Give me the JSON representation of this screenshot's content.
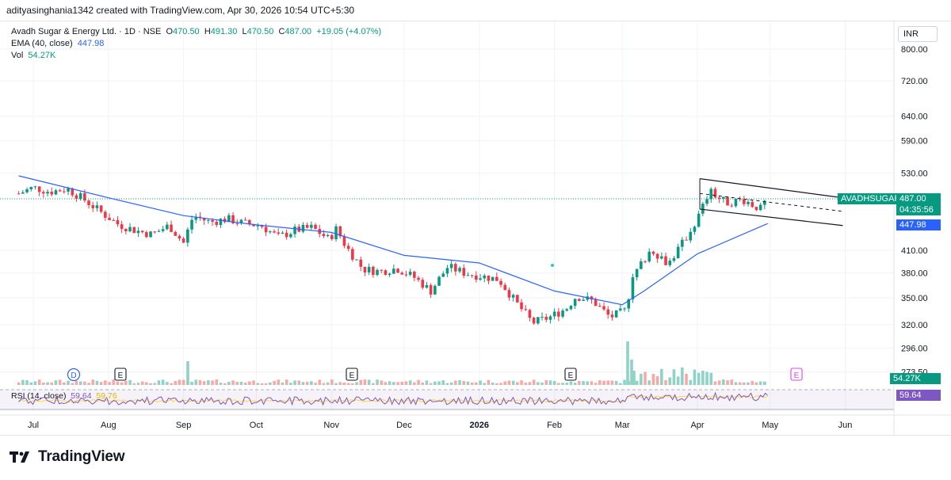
{
  "header": {
    "attribution": "adityasinghania1342 created with TradingView.com, Apr 30, 2026 10:54 UTC+5:30"
  },
  "legend": {
    "symbol_line": "Avadh Sugar & Energy Ltd. · 1D · NSE",
    "open_label": "O",
    "open": "470.50",
    "high_label": "H",
    "high": "491.30",
    "low_label": "L",
    "low": "470.50",
    "close_label": "C",
    "close": "487.00",
    "change": "+19.05 (+4.07%)",
    "ema_label": "EMA (40, close)",
    "ema_value": "447.98",
    "vol_label": "Vol",
    "vol_value": "54.27K",
    "rsi_label": "RSI (14, close)",
    "rsi_value": "59.64",
    "rsi_ma_value": "59.76"
  },
  "price_axis": {
    "currency": "INR",
    "ticks": [
      "800.00",
      "720.00",
      "640.00",
      "590.00",
      "530.00",
      "410.00",
      "380.00",
      "350.00",
      "320.00",
      "296.00",
      "273.50"
    ]
  },
  "time_axis": {
    "ticks": [
      "Jul",
      "Aug",
      "Sep",
      "Oct",
      "Nov",
      "Dec",
      "2026",
      "Feb",
      "Mar",
      "Apr",
      "May",
      "Jun"
    ]
  },
  "tags": {
    "symbol_tag": "AVADHSUGAR",
    "last_price": "487.00",
    "countdown": "04:35:56",
    "ema_tag": "447.98",
    "vol_tag": "54.27K",
    "rsi_tag": "59.64"
  },
  "event_markers": [
    "D",
    "E",
    "E",
    "E",
    "E"
  ],
  "brand": {
    "name": "TradingView"
  },
  "colors": {
    "up": "#089981",
    "down": "#f23645",
    "ema": "#2962ff",
    "rsi": "#7e57c2",
    "rsi_ma": "#fdd835",
    "tag_green": "#089981",
    "tag_blue": "#2962ff",
    "rsi_tag": "#7e57c2"
  },
  "chart_data": {
    "type": "candlestick",
    "title": "Avadh Sugar & Energy Ltd. · 1D · NSE",
    "y_scale": "log",
    "ylim": [
      265,
      830
    ],
    "x": [
      "Jul",
      "Aug",
      "Sep",
      "Oct",
      "Nov",
      "Dec",
      "2026",
      "Feb",
      "Mar",
      "Apr",
      "May",
      "Jun"
    ],
    "close_series": [
      {
        "date": "2025-06-25",
        "close": 495
      },
      {
        "date": "2025-07-01",
        "close": 505
      },
      {
        "date": "2025-07-08",
        "close": 498
      },
      {
        "date": "2025-07-15",
        "close": 503
      },
      {
        "date": "2025-07-22",
        "close": 485
      },
      {
        "date": "2025-07-29",
        "close": 465
      },
      {
        "date": "2025-08-05",
        "close": 447
      },
      {
        "date": "2025-08-12",
        "close": 438
      },
      {
        "date": "2025-08-19",
        "close": 432
      },
      {
        "date": "2025-08-26",
        "close": 445
      },
      {
        "date": "2025-09-01",
        "close": 420
      },
      {
        "date": "2025-09-05",
        "close": 460
      },
      {
        "date": "2025-09-12",
        "close": 450
      },
      {
        "date": "2025-09-19",
        "close": 455
      },
      {
        "date": "2025-09-26",
        "close": 448
      },
      {
        "date": "2025-10-03",
        "close": 445
      },
      {
        "date": "2025-10-10",
        "close": 428
      },
      {
        "date": "2025-10-17",
        "close": 438
      },
      {
        "date": "2025-10-24",
        "close": 442
      },
      {
        "date": "2025-10-31",
        "close": 425
      },
      {
        "date": "2025-11-03",
        "close": 440
      },
      {
        "date": "2025-11-07",
        "close": 415
      },
      {
        "date": "2025-11-14",
        "close": 385
      },
      {
        "date": "2025-11-21",
        "close": 382
      },
      {
        "date": "2025-11-28",
        "close": 386
      },
      {
        "date": "2025-12-05",
        "close": 375
      },
      {
        "date": "2025-12-12",
        "close": 358
      },
      {
        "date": "2025-12-19",
        "close": 388
      },
      {
        "date": "2025-12-26",
        "close": 380
      },
      {
        "date": "2026-01-02",
        "close": 376
      },
      {
        "date": "2026-01-09",
        "close": 372
      },
      {
        "date": "2026-01-16",
        "close": 345
      },
      {
        "date": "2026-01-23",
        "close": 322
      },
      {
        "date": "2026-01-30",
        "close": 328
      },
      {
        "date": "2026-02-06",
        "close": 338
      },
      {
        "date": "2026-02-10",
        "close": 352
      },
      {
        "date": "2026-02-17",
        "close": 346
      },
      {
        "date": "2026-02-24",
        "close": 328
      },
      {
        "date": "2026-03-02",
        "close": 335
      },
      {
        "date": "2026-03-06",
        "close": 378
      },
      {
        "date": "2026-03-13",
        "close": 412
      },
      {
        "date": "2026-03-20",
        "close": 392
      },
      {
        "date": "2026-03-27",
        "close": 425
      },
      {
        "date": "2026-04-01",
        "close": 455
      },
      {
        "date": "2026-04-06",
        "close": 498
      },
      {
        "date": "2026-04-13",
        "close": 480
      },
      {
        "date": "2026-04-20",
        "close": 485
      },
      {
        "date": "2026-04-27",
        "close": 470
      },
      {
        "date": "2026-04-30",
        "close": 487
      }
    ],
    "ema_40": [
      {
        "date": "2025-06-25",
        "value": 525
      },
      {
        "date": "2025-08-01",
        "value": 488
      },
      {
        "date": "2025-09-01",
        "value": 460
      },
      {
        "date": "2025-10-01",
        "value": 446
      },
      {
        "date": "2025-11-01",
        "value": 435
      },
      {
        "date": "2025-12-01",
        "value": 403
      },
      {
        "date": "2026-01-01",
        "value": 393
      },
      {
        "date": "2026-02-01",
        "value": 358
      },
      {
        "date": "2026-03-01",
        "value": 342
      },
      {
        "date": "2026-03-10",
        "value": 358
      },
      {
        "date": "2026-04-01",
        "value": 405
      },
      {
        "date": "2026-04-30",
        "value": 447.98
      }
    ],
    "rsi_14": [
      {
        "date": "2026-04-30",
        "value": 59.64
      }
    ],
    "channel": {
      "upper": [
        {
          "date": "2026-04-02",
          "value": 520
        },
        {
          "date": "2026-05-31",
          "value": 488
        }
      ],
      "lower": [
        {
          "date": "2026-04-02",
          "value": 470
        },
        {
          "date": "2026-05-31",
          "value": 445
        }
      ]
    },
    "grid": true,
    "legend": "top-left"
  }
}
